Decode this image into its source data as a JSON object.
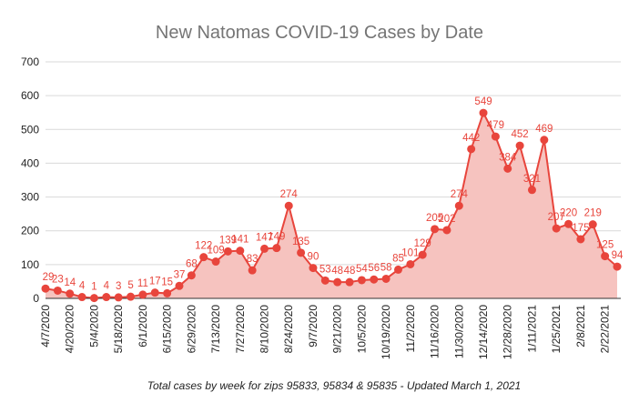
{
  "chart_data": {
    "type": "area",
    "title": "New Natomas COVID-19 Cases by Date",
    "caption": "Total cases by week for zips 95833, 95834 & 95835 - Updated March 1, 2021",
    "ylim": [
      0,
      700
    ],
    "yticks": [
      "0",
      "100",
      "200",
      "300",
      "400",
      "500",
      "600",
      "700"
    ],
    "x": [
      "4/7/2020",
      "4/13/2020",
      "4/20/2020",
      "4/27/2020",
      "5/4/2020",
      "5/11/2020",
      "5/18/2020",
      "5/25/2020",
      "6/1/2020",
      "6/8/2020",
      "6/15/2020",
      "6/22/2020",
      "6/29/2020",
      "7/6/2020",
      "7/13/2020",
      "7/20/2020",
      "7/27/2020",
      "8/3/2020",
      "8/10/2020",
      "8/17/2020",
      "8/24/2020",
      "8/31/2020",
      "9/7/2020",
      "9/14/2020",
      "9/21/2020",
      "9/28/2020",
      "10/5/2020",
      "10/12/2020",
      "10/19/2020",
      "10/26/2020",
      "11/2/2020",
      "11/9/2020",
      "11/16/2020",
      "11/23/2020",
      "11/30/2020",
      "12/7/2020",
      "12/14/2020",
      "12/21/2020",
      "12/28/2020",
      "1/4/2021",
      "1/11/2021",
      "1/18/2021",
      "1/25/2021",
      "2/1/2021",
      "2/8/2021",
      "2/15/2021",
      "2/22/2021",
      "3/1/2021"
    ],
    "xtick_labels": [
      "4/7/2020",
      "4/20/2020",
      "5/4/2020",
      "5/18/2020",
      "6/1/2020",
      "6/15/2020",
      "6/29/2020",
      "7/13/2020",
      "7/27/2020",
      "8/10/2020",
      "8/24/2020",
      "9/7/2020",
      "9/21/2020",
      "10/5/2020",
      "10/19/2020",
      "11/2/2020",
      "11/16/2020",
      "11/30/2020",
      "12/14/2020",
      "12/28/2020",
      "1/11/2021",
      "1/25/2021",
      "2/8/2021",
      "2/22/2021"
    ],
    "series": [
      {
        "values": [
          29,
          23,
          14,
          4,
          1,
          4,
          3,
          5,
          11,
          17,
          15,
          37,
          68,
          122,
          109,
          139,
          141,
          83,
          147,
          149,
          274,
          135,
          90,
          53,
          48,
          48,
          54,
          56,
          58,
          85,
          101,
          129,
          205,
          202,
          274,
          442,
          549,
          479,
          384,
          452,
          321,
          469,
          207,
          220,
          175,
          219,
          125,
          94
        ],
        "labels": [
          "29",
          "23",
          "14",
          "4",
          "1",
          "4",
          "3",
          "5",
          "11",
          "17",
          "15",
          "37",
          "68",
          "122",
          "109",
          "139",
          "141",
          "83",
          "147",
          "149",
          "274",
          "135",
          "90",
          "53",
          "48",
          "48",
          "54",
          "56",
          "58",
          "85",
          "101",
          "129",
          "205",
          "202",
          "274",
          "442",
          "549",
          "479",
          "384",
          "452",
          "321",
          "469",
          "207",
          "220",
          "175",
          "219",
          "125",
          "94"
        ]
      }
    ],
    "grid": true,
    "colors": {
      "line": "#e8453c",
      "fill": "#f6c3bf",
      "grid": "#d9d9d9",
      "title": "#757575"
    }
  }
}
